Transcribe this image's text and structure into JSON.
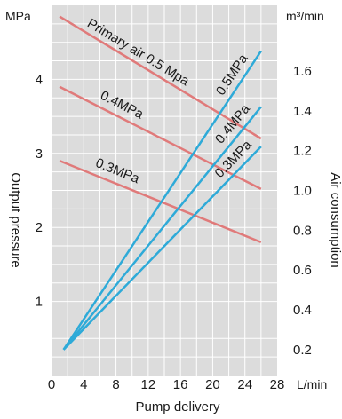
{
  "chart_data": {
    "type": "line",
    "x_unit": "L/min",
    "left_unit": "MPa",
    "right_unit": "m³/min",
    "xlabel": "Pump delivery",
    "ylabel_left": "Output pressure",
    "ylabel_right": "Air consumption",
    "xlim": [
      0,
      28
    ],
    "ylim_left": [
      0,
      5
    ],
    "ylim_right": [
      0.07,
      1.93
    ],
    "x_ticks": [
      "0",
      "4",
      "8",
      "12",
      "16",
      "20",
      "24",
      "28"
    ],
    "left_ticks": [
      "1",
      "2",
      "3",
      "4"
    ],
    "right_ticks": [
      "0.2",
      "0.4",
      "0.6",
      "0.8",
      "1.0",
      "1.2",
      "1.4",
      "1.6"
    ],
    "grid": true,
    "colors": {
      "pressure": "#e07a7a",
      "consumption": "#2eaad8",
      "grid": "#ffffff",
      "plot_bg": "#dcdcdc"
    },
    "pressure_series": [
      {
        "label": "Primary air 0.5 Mpa",
        "x": [
          1,
          26
        ],
        "y": [
          4.85,
          3.2
        ]
      },
      {
        "label": "0.4MPa",
        "x": [
          1,
          26
        ],
        "y": [
          3.9,
          2.52
        ]
      },
      {
        "label": "0.3MPa",
        "x": [
          1,
          26
        ],
        "y": [
          2.9,
          1.8
        ]
      }
    ],
    "consumption_series": [
      {
        "label": "0.5MPa",
        "x": [
          1.5,
          26
        ],
        "y": [
          0.2,
          1.7
        ]
      },
      {
        "label": "0.4MPa",
        "x": [
          1.5,
          26
        ],
        "y": [
          0.2,
          1.42
        ]
      },
      {
        "label": "0.3MPa",
        "x": [
          1.5,
          26
        ],
        "y": [
          0.2,
          1.22
        ]
      }
    ]
  }
}
